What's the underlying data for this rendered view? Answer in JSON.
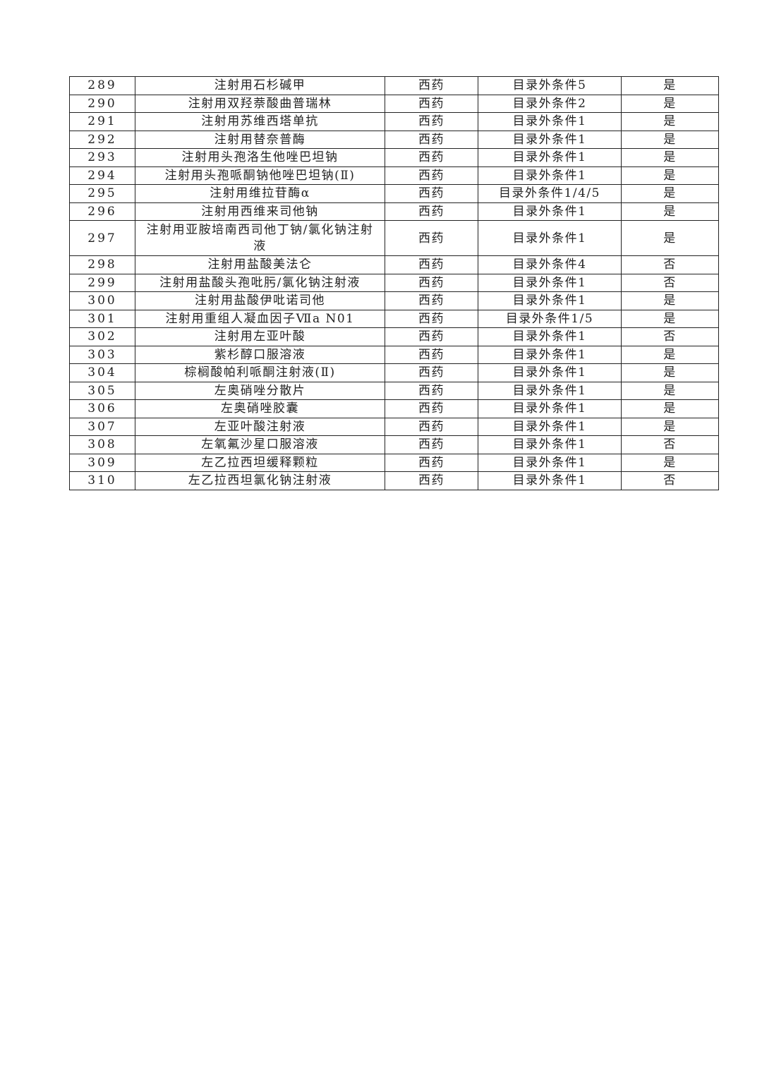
{
  "rows": [
    {
      "no": "289",
      "name": "注射用石杉碱甲",
      "type": "西药",
      "condition": "目录外条件5",
      "flag": "是"
    },
    {
      "no": "290",
      "name": "注射用双羟萘酸曲普瑞林",
      "type": "西药",
      "condition": "目录外条件2",
      "flag": "是"
    },
    {
      "no": "291",
      "name": "注射用苏维西塔单抗",
      "type": "西药",
      "condition": "目录外条件1",
      "flag": "是"
    },
    {
      "no": "292",
      "name": "注射用替奈普酶",
      "type": "西药",
      "condition": "目录外条件1",
      "flag": "是"
    },
    {
      "no": "293",
      "name": "注射用头孢洛生他唑巴坦钠",
      "type": "西药",
      "condition": "目录外条件1",
      "flag": "是"
    },
    {
      "no": "294",
      "name": "注射用头孢哌酮钠他唑巴坦钠(Ⅱ)",
      "type": "西药",
      "condition": "目录外条件1",
      "flag": "是"
    },
    {
      "no": "295",
      "name": "注射用维拉苷酶α",
      "type": "西药",
      "condition": "目录外条件1/4/5",
      "flag": "是"
    },
    {
      "no": "296",
      "name": "注射用西维来司他钠",
      "type": "西药",
      "condition": "目录外条件1",
      "flag": "是"
    },
    {
      "no": "297",
      "name": "注射用亚胺培南西司他丁钠/氯化钠注射液",
      "type": "西药",
      "condition": "目录外条件1",
      "flag": "是"
    },
    {
      "no": "298",
      "name": "注射用盐酸美法仑",
      "type": "西药",
      "condition": "目录外条件4",
      "flag": "否"
    },
    {
      "no": "299",
      "name": "注射用盐酸头孢吡肟/氯化钠注射液",
      "type": "西药",
      "condition": "目录外条件1",
      "flag": "否"
    },
    {
      "no": "300",
      "name": "注射用盐酸伊吡诺司他",
      "type": "西药",
      "condition": "目录外条件1",
      "flag": "是"
    },
    {
      "no": "301",
      "name": "注射用重组人凝血因子Ⅶa N01",
      "type": "西药",
      "condition": "目录外条件1/5",
      "flag": "是"
    },
    {
      "no": "302",
      "name": "注射用左亚叶酸",
      "type": "西药",
      "condition": "目录外条件1",
      "flag": "否"
    },
    {
      "no": "303",
      "name": "紫杉醇口服溶液",
      "type": "西药",
      "condition": "目录外条件1",
      "flag": "是"
    },
    {
      "no": "304",
      "name": "棕榈酸帕利哌酮注射液(Ⅱ)",
      "type": "西药",
      "condition": "目录外条件1",
      "flag": "是"
    },
    {
      "no": "305",
      "name": "左奥硝唑分散片",
      "type": "西药",
      "condition": "目录外条件1",
      "flag": "是"
    },
    {
      "no": "306",
      "name": "左奥硝唑胶囊",
      "type": "西药",
      "condition": "目录外条件1",
      "flag": "是"
    },
    {
      "no": "307",
      "name": "左亚叶酸注射液",
      "type": "西药",
      "condition": "目录外条件1",
      "flag": "是"
    },
    {
      "no": "308",
      "name": "左氧氟沙星口服溶液",
      "type": "西药",
      "condition": "目录外条件1",
      "flag": "否"
    },
    {
      "no": "309",
      "name": "左乙拉西坦缓释颗粒",
      "type": "西药",
      "condition": "目录外条件1",
      "flag": "是"
    },
    {
      "no": "310",
      "name": "左乙拉西坦氯化钠注射液",
      "type": "西药",
      "condition": "目录外条件1",
      "flag": "否"
    }
  ]
}
